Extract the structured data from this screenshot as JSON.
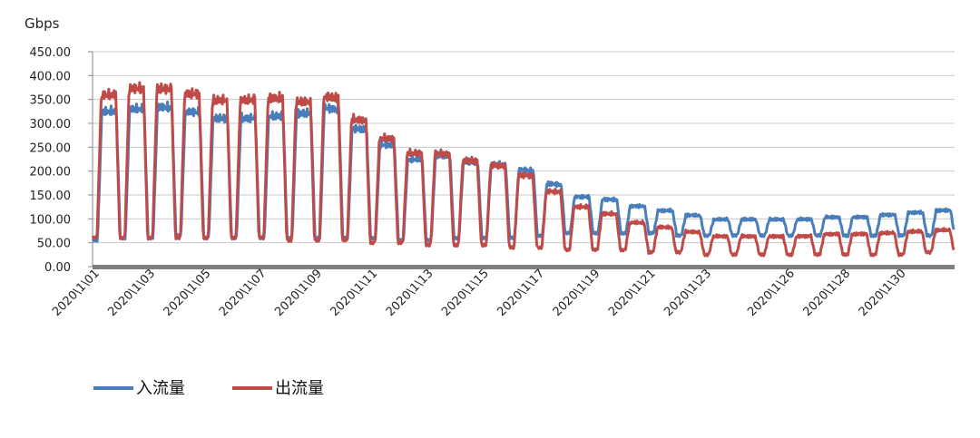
{
  "chart_data": {
    "type": "line",
    "title": "",
    "unit_label": "Gbps",
    "xlabel": "",
    "ylabel": "",
    "ylim": [
      0,
      450
    ],
    "y_tick_labels": [
      "0.00",
      "50.00",
      "100.00",
      "150.00",
      "200.00",
      "250.00",
      "300.00",
      "350.00",
      "400.00",
      "450.00"
    ],
    "y_tick_values": [
      0,
      50,
      100,
      150,
      200,
      250,
      300,
      350,
      400,
      450
    ],
    "x_tick_labels": [
      "2020\\1\\01",
      "2020\\1\\03",
      "2020\\1\\05",
      "2020\\1\\07",
      "2020\\1\\09",
      "2020\\1\\11",
      "2020\\1\\13",
      "2020\\1\\15",
      "2020\\1\\17",
      "2020\\1\\19",
      "2020\\1\\21",
      "2020\\1\\23",
      "2020\\1\\26",
      "2020\\1\\28",
      "2020\\1\\30"
    ],
    "grid": true,
    "legend_position": "bottom-left",
    "daily": {
      "days": [
        "2020\\1\\01",
        "2020\\1\\02",
        "2020\\1\\03",
        "2020\\1\\04",
        "2020\\1\\05",
        "2020\\1\\06",
        "2020\\1\\07",
        "2020\\1\\08",
        "2020\\1\\09",
        "2020\\1\\10",
        "2020\\1\\11",
        "2020\\1\\12",
        "2020\\1\\13",
        "2020\\1\\14",
        "2020\\1\\15",
        "2020\\1\\16",
        "2020\\1\\17",
        "2020\\1\\18",
        "2020\\1\\19",
        "2020\\1\\20",
        "2020\\1\\21",
        "2020\\1\\22",
        "2020\\1\\23",
        "2020\\1\\24",
        "2020\\1\\25",
        "2020\\1\\26",
        "2020\\1\\27",
        "2020\\1\\28",
        "2020\\1\\29",
        "2020\\1\\30",
        "2020\\1\\31"
      ]
    },
    "series": [
      {
        "name": "入流量",
        "color": "#4a7ebb",
        "daily_peak": [
          335,
          340,
          345,
          335,
          320,
          320,
          325,
          330,
          345,
          300,
          265,
          230,
          240,
          225,
          220,
          210,
          180,
          150,
          145,
          130,
          120,
          110,
          100,
          100,
          100,
          100,
          105,
          105,
          110,
          115,
          120
        ],
        "daily_low": [
          55,
          60,
          60,
          65,
          60,
          60,
          60,
          60,
          60,
          60,
          60,
          55,
          55,
          60,
          60,
          60,
          65,
          70,
          70,
          70,
          70,
          65,
          65,
          65,
          65,
          65,
          65,
          65,
          65,
          65,
          65
        ]
      },
      {
        "name": "出流量",
        "color": "#be4b48",
        "daily_peak": [
          370,
          385,
          385,
          375,
          360,
          360,
          365,
          355,
          370,
          320,
          280,
          245,
          245,
          230,
          220,
          200,
          165,
          130,
          115,
          95,
          85,
          75,
          65,
          65,
          65,
          65,
          70,
          70,
          72,
          75,
          78
        ],
        "daily_low": [
          60,
          60,
          60,
          60,
          60,
          60,
          60,
          55,
          55,
          55,
          50,
          50,
          45,
          45,
          45,
          40,
          40,
          35,
          35,
          35,
          30,
          30,
          25,
          25,
          25,
          25,
          25,
          25,
          25,
          25,
          30
        ]
      }
    ]
  }
}
